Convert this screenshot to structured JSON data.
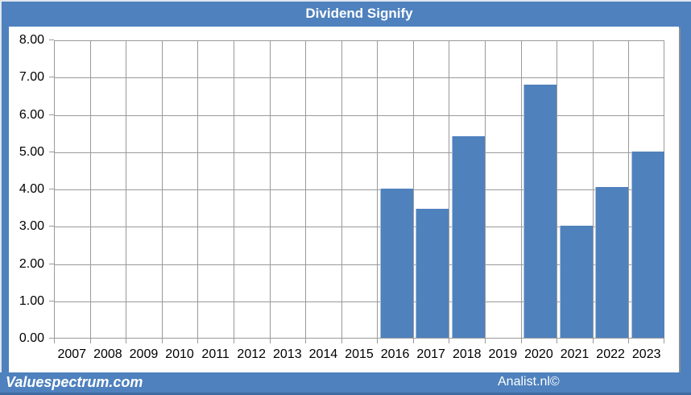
{
  "title": "Dividend Signify",
  "footer": {
    "left": "Valuespectrum.com",
    "right": "Analist.nl©"
  },
  "colors": {
    "frame_blue": "#4e81bd",
    "bar_blue": "#4f81bd",
    "gridline_gray": "#9a9a9a",
    "plot_background": "#ffffff",
    "title_text": "#ffffff",
    "axis_text": "#000000",
    "footer_bottom_edge": "#3f6ba3"
  },
  "chart_data": {
    "type": "bar",
    "title": "Dividend Signify",
    "categories": [
      "2007",
      "2008",
      "2009",
      "2010",
      "2011",
      "2012",
      "2013",
      "2014",
      "2015",
      "2016",
      "2017",
      "2018",
      "2019",
      "2020",
      "2021",
      "2022",
      "2023"
    ],
    "values": [
      null,
      null,
      null,
      null,
      null,
      null,
      null,
      null,
      null,
      4.0,
      3.45,
      5.4,
      null,
      6.78,
      3.0,
      4.05,
      5.0
    ],
    "xlabel": "",
    "ylabel": "",
    "ylim": [
      0,
      8
    ],
    "ytick_step": 1,
    "ytick_labels": [
      "0.00",
      "1.00",
      "2.00",
      "3.00",
      "4.00",
      "5.00",
      "6.00",
      "7.00",
      "8.00"
    ],
    "grid": "both",
    "legend": "none",
    "bar_color": "#4f81bd"
  }
}
